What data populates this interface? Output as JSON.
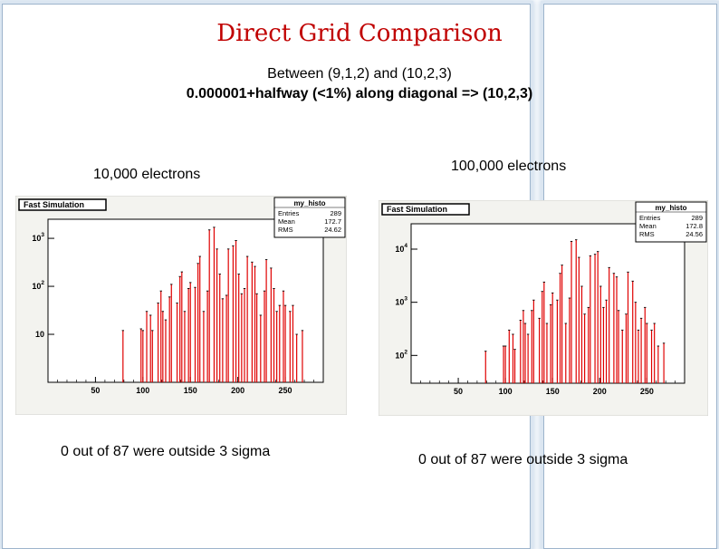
{
  "slide": {
    "title": "Direct Grid Comparison",
    "subtitle_line1": "Between (9,1,2) and (10,2,3)",
    "subtitle_line2": "0.000001+halfway (<1%) along diagonal => (10,2,3)"
  },
  "left_panel": {
    "heading": "10,000 electrons",
    "result": "0 out of 87 were outside 3 sigma"
  },
  "right_panel": {
    "heading": "100,000 electrons",
    "result": "0 out of 87 were outside 3 sigma"
  },
  "colors": {
    "title": "#c00000",
    "histogram": "#e00000",
    "frame": "#9db4cc"
  },
  "chart_data": [
    {
      "type": "bar",
      "panel_label": "Fast Simulation",
      "stats_box": {
        "name": "my_histo",
        "rows": [
          [
            "Entries",
            "289"
          ],
          [
            "Mean",
            "172.7"
          ],
          [
            "RMS",
            "24.62"
          ]
        ]
      },
      "x_ticks": [
        "50",
        "100",
        "150",
        "200",
        "250"
      ],
      "xlim": [
        0,
        290
      ],
      "y_ticks": [
        {
          "label": "10",
          "exp": "",
          "value": 10
        },
        {
          "label": "10",
          "exp": "2",
          "value": 100
        },
        {
          "label": "10",
          "exp": "3",
          "value": 1000
        }
      ],
      "ylim": [
        1,
        2500
      ],
      "y_scale": "log",
      "x": [
        79,
        98,
        100,
        104,
        108,
        110,
        116,
        119,
        121,
        124,
        128,
        130,
        136,
        139,
        141,
        144,
        148,
        150,
        155,
        158,
        160,
        164,
        168,
        170,
        175,
        178,
        181,
        184,
        188,
        190,
        195,
        198,
        201,
        204,
        207,
        210,
        215,
        218,
        220,
        224,
        228,
        230,
        235,
        238,
        241,
        244,
        248,
        250,
        255,
        258,
        262,
        268
      ],
      "values": [
        12,
        13,
        12,
        30,
        25,
        12,
        45,
        80,
        30,
        20,
        60,
        110,
        45,
        160,
        200,
        30,
        90,
        120,
        95,
        300,
        420,
        30,
        80,
        1500,
        1700,
        600,
        180,
        55,
        65,
        600,
        700,
        900,
        180,
        70,
        90,
        420,
        320,
        260,
        70,
        25,
        80,
        360,
        240,
        90,
        30,
        40,
        80,
        40,
        30,
        40,
        10,
        12
      ]
    },
    {
      "type": "bar",
      "panel_label": "Fast Simulation",
      "stats_box": {
        "name": "my_histo",
        "rows": [
          [
            "Entries",
            "289"
          ],
          [
            "Mean",
            "172.8"
          ],
          [
            "RMS",
            "24.56"
          ]
        ]
      },
      "x_ticks": [
        "50",
        "100",
        "150",
        "200",
        "250"
      ],
      "xlim": [
        0,
        290
      ],
      "y_ticks": [
        {
          "label": "10",
          "exp": "2",
          "value": 100
        },
        {
          "label": "10",
          "exp": "3",
          "value": 1000
        },
        {
          "label": "10",
          "exp": "4",
          "value": 10000
        }
      ],
      "y_scale": "log",
      "ylim": [
        30,
        30000
      ],
      "x": [
        79,
        98,
        100,
        104,
        108,
        110,
        116,
        119,
        121,
        124,
        128,
        130,
        136,
        139,
        141,
        144,
        148,
        150,
        155,
        158,
        160,
        164,
        168,
        170,
        175,
        178,
        181,
        184,
        188,
        190,
        195,
        198,
        201,
        204,
        207,
        210,
        215,
        218,
        220,
        224,
        228,
        230,
        235,
        238,
        241,
        244,
        248,
        250,
        255,
        258,
        262,
        268
      ],
      "values": [
        120,
        150,
        150,
        300,
        250,
        130,
        460,
        700,
        400,
        250,
        700,
        1100,
        500,
        1600,
        2400,
        400,
        900,
        1500,
        1100,
        3500,
        5000,
        400,
        1200,
        14000,
        15000,
        7000,
        2000,
        600,
        800,
        7500,
        8000,
        9000,
        2000,
        800,
        1100,
        4500,
        3500,
        3000,
        700,
        300,
        600,
        3700,
        2500,
        1000,
        300,
        500,
        800,
        400,
        300,
        400,
        150,
        170
      ]
    }
  ]
}
